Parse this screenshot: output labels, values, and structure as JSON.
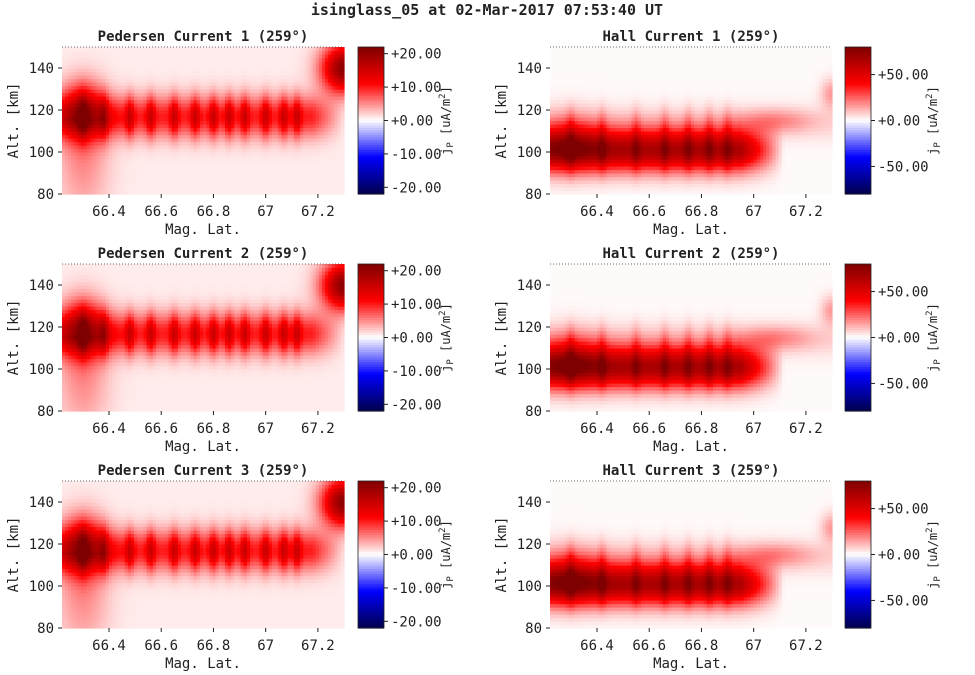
{
  "figure": {
    "title": "isinglass_05 at 02-Mar-2017 07:53:40 UT",
    "colormap": "seismic",
    "colors": {
      "neg_dark": "#00004c",
      "neg": "#0000ff",
      "zero": "#ffffff",
      "pos": "#ff0000",
      "pos_dark": "#7f0000",
      "background_field": "#f1e3e3"
    }
  },
  "chart_data": [
    {
      "type": "heatmap",
      "title": "Pedersen Current 1 (259°)",
      "xlabel": "Mag. Lat.",
      "ylabel": "Alt. [km]",
      "xticks": [
        "66.4",
        "66.6",
        "66.8",
        "67",
        "67.2"
      ],
      "xtick_values": [
        66.4,
        66.6,
        66.8,
        67.0,
        67.2
      ],
      "yticks": [
        "80",
        "100",
        "120",
        "140"
      ],
      "xlim": [
        66.22,
        67.3
      ],
      "ylim": [
        80,
        150
      ],
      "colorbar": {
        "label": "j_P [uA/m^2]",
        "ticks": [
          "+20.00",
          "+10.00",
          "+0.00",
          "-10.00",
          "-20.00"
        ],
        "range": [
          -22,
          22
        ]
      },
      "field": {
        "kind": "pedersen",
        "peak_alt_km": 117,
        "peak_value": 21,
        "band_halfwidth_km": 7,
        "striation_lats": [
          66.3,
          66.38,
          66.48,
          66.56,
          66.65,
          66.73,
          66.8,
          66.86,
          66.92,
          67.0,
          67.07,
          67.12
        ],
        "corner_blob_value": 20
      }
    },
    {
      "type": "heatmap",
      "title": "Hall Current 1 (259°)",
      "xlabel": "Mag. Lat.",
      "ylabel": "Alt. [km]",
      "xticks": [
        "66.4",
        "66.6",
        "66.8",
        "67",
        "67.2"
      ],
      "xtick_values": [
        66.4,
        66.6,
        66.8,
        67.0,
        67.2
      ],
      "yticks": [
        "80",
        "100",
        "120",
        "140"
      ],
      "xlim": [
        66.22,
        67.3
      ],
      "ylim": [
        80,
        150
      ],
      "colorbar": {
        "label": "j_P [uA/m^2]",
        "ticks": [
          "+50.00",
          "+0.00",
          "-50.00"
        ],
        "range": [
          -80,
          80
        ]
      },
      "field": {
        "kind": "hall",
        "peak_alt_km": 101,
        "peak_value": 80,
        "band_halfwidth_km": 7,
        "striation_lats": [
          66.3,
          66.42,
          66.55,
          66.66,
          66.75,
          66.83,
          66.9
        ],
        "corner_blob_value": 15
      }
    },
    {
      "type": "heatmap",
      "title": "Pedersen Current 2 (259°)",
      "xlabel": "Mag. Lat.",
      "ylabel": "Alt. [km]",
      "xticks": [
        "66.4",
        "66.6",
        "66.8",
        "67",
        "67.2"
      ],
      "xtick_values": [
        66.4,
        66.6,
        66.8,
        67.0,
        67.2
      ],
      "yticks": [
        "80",
        "100",
        "120",
        "140"
      ],
      "xlim": [
        66.22,
        67.3
      ],
      "ylim": [
        80,
        150
      ],
      "colorbar": {
        "label": "j_P [uA/m^2]",
        "ticks": [
          "+20.00",
          "+10.00",
          "+0.00",
          "-10.00",
          "-20.00"
        ],
        "range": [
          -22,
          22
        ]
      },
      "field": {
        "kind": "pedersen",
        "peak_alt_km": 117,
        "peak_value": 21,
        "band_halfwidth_km": 7,
        "striation_lats": [
          66.3,
          66.38,
          66.48,
          66.56,
          66.65,
          66.73,
          66.8,
          66.86,
          66.92,
          67.0,
          67.07,
          67.12
        ],
        "corner_blob_value": 20
      }
    },
    {
      "type": "heatmap",
      "title": "Hall Current 2 (259°)",
      "xlabel": "Mag. Lat.",
      "ylabel": "Alt. [km]",
      "xticks": [
        "66.4",
        "66.6",
        "66.8",
        "67",
        "67.2"
      ],
      "xtick_values": [
        66.4,
        66.6,
        66.8,
        67.0,
        67.2
      ],
      "yticks": [
        "80",
        "100",
        "120",
        "140"
      ],
      "xlim": [
        66.22,
        67.3
      ],
      "ylim": [
        80,
        150
      ],
      "colorbar": {
        "label": "j_P [uA/m^2]",
        "ticks": [
          "+50.00",
          "+0.00",
          "-50.00"
        ],
        "range": [
          -80,
          80
        ]
      },
      "field": {
        "kind": "hall",
        "peak_alt_km": 101,
        "peak_value": 80,
        "band_halfwidth_km": 7,
        "striation_lats": [
          66.3,
          66.42,
          66.55,
          66.66,
          66.75,
          66.83,
          66.9
        ],
        "corner_blob_value": 15
      }
    },
    {
      "type": "heatmap",
      "title": "Pedersen Current 3 (259°)",
      "xlabel": "Mag. Lat.",
      "ylabel": "Alt. [km]",
      "xticks": [
        "66.4",
        "66.6",
        "66.8",
        "67",
        "67.2"
      ],
      "xtick_values": [
        66.4,
        66.6,
        66.8,
        67.0,
        67.2
      ],
      "yticks": [
        "80",
        "100",
        "120",
        "140"
      ],
      "xlim": [
        66.22,
        67.3
      ],
      "ylim": [
        80,
        150
      ],
      "colorbar": {
        "label": "j_P [uA/m^2]",
        "ticks": [
          "+20.00",
          "+10.00",
          "+0.00",
          "-10.00",
          "-20.00"
        ],
        "range": [
          -22,
          22
        ]
      },
      "field": {
        "kind": "pedersen",
        "peak_alt_km": 117,
        "peak_value": 21,
        "band_halfwidth_km": 7,
        "striation_lats": [
          66.3,
          66.38,
          66.48,
          66.56,
          66.65,
          66.73,
          66.8,
          66.86,
          66.92,
          67.0,
          67.07,
          67.12
        ],
        "corner_blob_value": 20
      }
    },
    {
      "type": "heatmap",
      "title": "Hall Current 3 (259°)",
      "xlabel": "Mag. Lat.",
      "ylabel": "Alt. [km]",
      "xticks": [
        "66.4",
        "66.6",
        "66.8",
        "67",
        "67.2"
      ],
      "xtick_values": [
        66.4,
        66.6,
        66.8,
        67.0,
        67.2
      ],
      "yticks": [
        "80",
        "100",
        "120",
        "140"
      ],
      "xlim": [
        66.22,
        67.3
      ],
      "ylim": [
        80,
        150
      ],
      "colorbar": {
        "label": "j_P [uA/m^2]",
        "ticks": [
          "+50.00",
          "+0.00",
          "-50.00"
        ],
        "range": [
          -80,
          80
        ]
      },
      "field": {
        "kind": "hall",
        "peak_alt_km": 101,
        "peak_value": 80,
        "band_halfwidth_km": 7,
        "striation_lats": [
          66.3,
          66.42,
          66.55,
          66.66,
          66.75,
          66.83,
          66.9
        ],
        "corner_blob_value": 15
      }
    }
  ]
}
